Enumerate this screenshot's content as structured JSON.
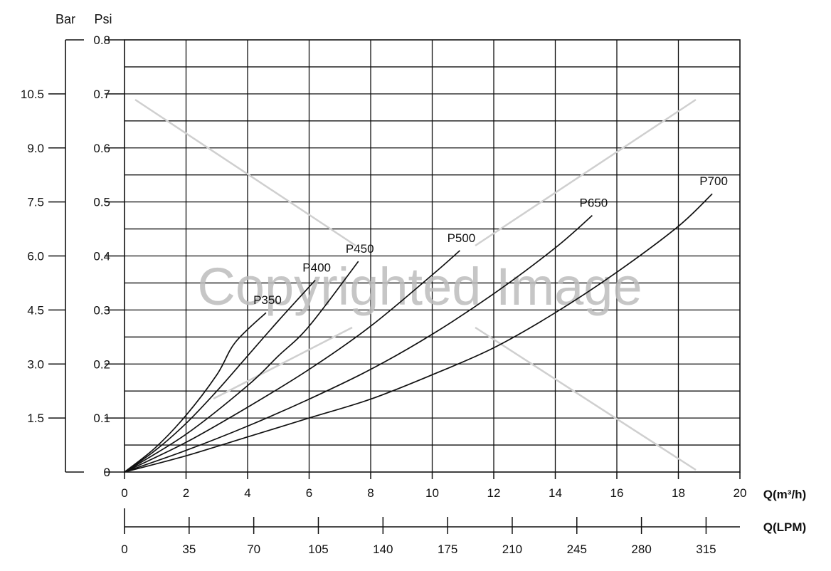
{
  "chart_data": {
    "type": "line",
    "title": "",
    "watermark": "Copyrighted Image",
    "left_axis_unit": "Bar",
    "right_axis_unit": "Psi",
    "xlabel": "Q(m³/h)",
    "x2label": "Q(LPM)",
    "xlim": [
      0,
      20
    ],
    "ylim": [
      0,
      0.8
    ],
    "bar_ticks": [
      "1.5",
      "3.0",
      "4.5",
      "6.0",
      "7.5",
      "9.0",
      "10.5"
    ],
    "bar_tick_values": [
      0.1,
      0.2,
      0.3,
      0.4,
      0.5,
      0.6,
      0.7
    ],
    "psi_ticks": [
      "0",
      "0.1",
      "0.2",
      "0.3",
      "0.4",
      "0.5",
      "0.6",
      "0.7",
      "0.8"
    ],
    "x_ticks": [
      "0",
      "2",
      "4",
      "6",
      "8",
      "10",
      "12",
      "14",
      "16",
      "18",
      "20"
    ],
    "lpm_ticks": [
      "0",
      "35",
      "70",
      "105",
      "140",
      "175",
      "210",
      "245",
      "280",
      "315"
    ],
    "series": [
      {
        "name": "P350",
        "x": [
          0,
          1,
          2,
          3,
          3.6,
          4.6
        ],
        "y": [
          0,
          0.045,
          0.105,
          0.18,
          0.24,
          0.295
        ]
      },
      {
        "name": "P400",
        "x": [
          0,
          1,
          2,
          3,
          4,
          5,
          6.2
        ],
        "y": [
          0,
          0.04,
          0.09,
          0.15,
          0.215,
          0.28,
          0.355
        ]
      },
      {
        "name": "P450",
        "x": [
          0,
          2,
          4,
          5,
          6,
          7.6
        ],
        "y": [
          0,
          0.07,
          0.16,
          0.215,
          0.27,
          0.39
        ]
      },
      {
        "name": "P500",
        "x": [
          0,
          2,
          4,
          6,
          8,
          10,
          10.9
        ],
        "y": [
          0,
          0.055,
          0.12,
          0.19,
          0.27,
          0.365,
          0.41
        ]
      },
      {
        "name": "P650",
        "x": [
          0,
          2,
          4,
          6,
          8,
          10,
          12,
          14,
          15.2
        ],
        "y": [
          0,
          0.04,
          0.085,
          0.135,
          0.19,
          0.255,
          0.33,
          0.415,
          0.475
        ]
      },
      {
        "name": "P700",
        "x": [
          0,
          2,
          4,
          6,
          8,
          10,
          12,
          14,
          16,
          18,
          19.1
        ],
        "y": [
          0,
          0.03,
          0.065,
          0.1,
          0.135,
          0.18,
          0.23,
          0.295,
          0.37,
          0.455,
          0.515
        ]
      }
    ]
  }
}
